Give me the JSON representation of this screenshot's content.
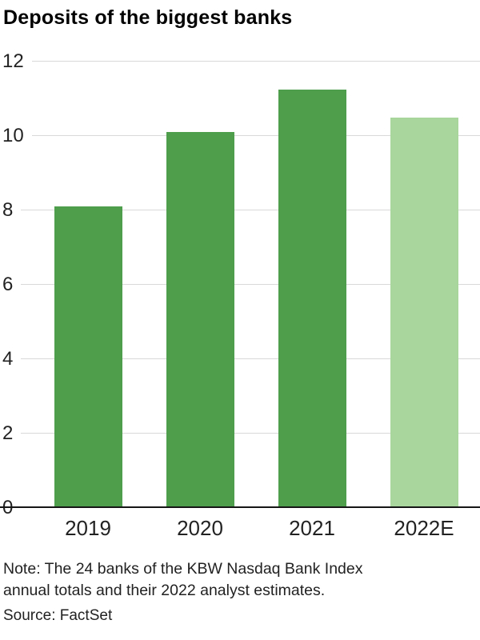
{
  "title": "Deposits of the biggest banks",
  "note": {
    "line1": "Note: The 24 banks of the KBW Nasdaq Bank Index",
    "line2": "annual totals and their 2022 analyst estimates."
  },
  "source": "Source: FactSet",
  "colors": {
    "bar": "#4e9e4c",
    "bar_estimate": "#a8d69c",
    "grid": "#d9d9d9",
    "axis": "#161616",
    "text": "#222222"
  },
  "chart_data": {
    "type": "bar",
    "title": "Deposits of the biggest banks",
    "categories": [
      "2019",
      "2020",
      "2021",
      "2022E"
    ],
    "values": [
      8.1,
      10.1,
      11.25,
      10.5
    ],
    "estimate_index": 3,
    "xlabel": "",
    "ylabel": "",
    "ylim": [
      0,
      12
    ],
    "yticks": [
      0,
      2,
      4,
      6,
      8,
      10,
      12
    ],
    "grid": true,
    "legend": "none"
  }
}
